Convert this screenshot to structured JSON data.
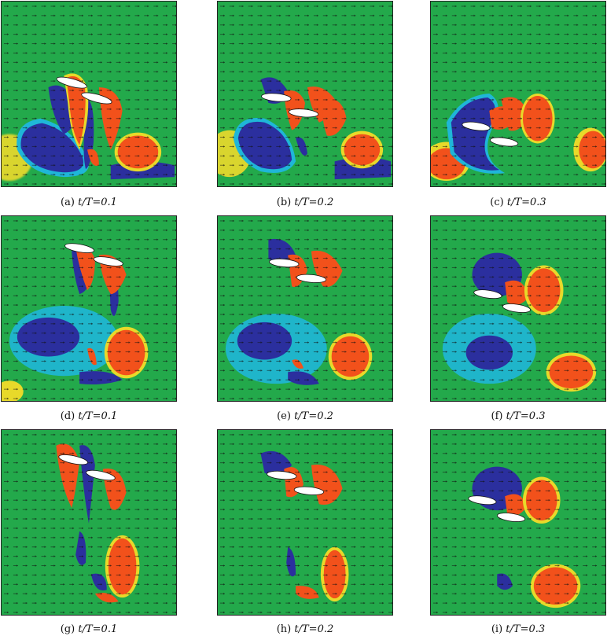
{
  "figure": {
    "panels": [
      {
        "label": "(a)",
        "text": "t/T=0.1",
        "t": "0.1"
      },
      {
        "label": "(b)",
        "text": "t/T=0.2",
        "t": "0.2"
      },
      {
        "label": "(c)",
        "text": "t/T=0.3",
        "t": "0.3"
      },
      {
        "label": "(d)",
        "text": "t/T=0.1",
        "t": "0.1"
      },
      {
        "label": "(e)",
        "text": "t/T=0.2",
        "t": "0.2"
      },
      {
        "label": "(f)",
        "text": "t/T=0.3",
        "t": "0.3"
      },
      {
        "label": "(g)",
        "text": "t/T=0.1",
        "t": "0.1"
      },
      {
        "label": "(h)",
        "text": "t/T=0.2",
        "t": "0.2"
      },
      {
        "label": "(i)",
        "text": "t/T=0.3",
        "t": "0.3"
      }
    ],
    "colors": {
      "background": "#23a94b",
      "positive_vorticity": "#f2511b",
      "negative_vorticity": "#2b2f9e",
      "halo_positive": "#e8d92a",
      "halo_negative": "#1fb6d8",
      "foil": "#ffffff",
      "arrows": "#111111"
    }
  }
}
